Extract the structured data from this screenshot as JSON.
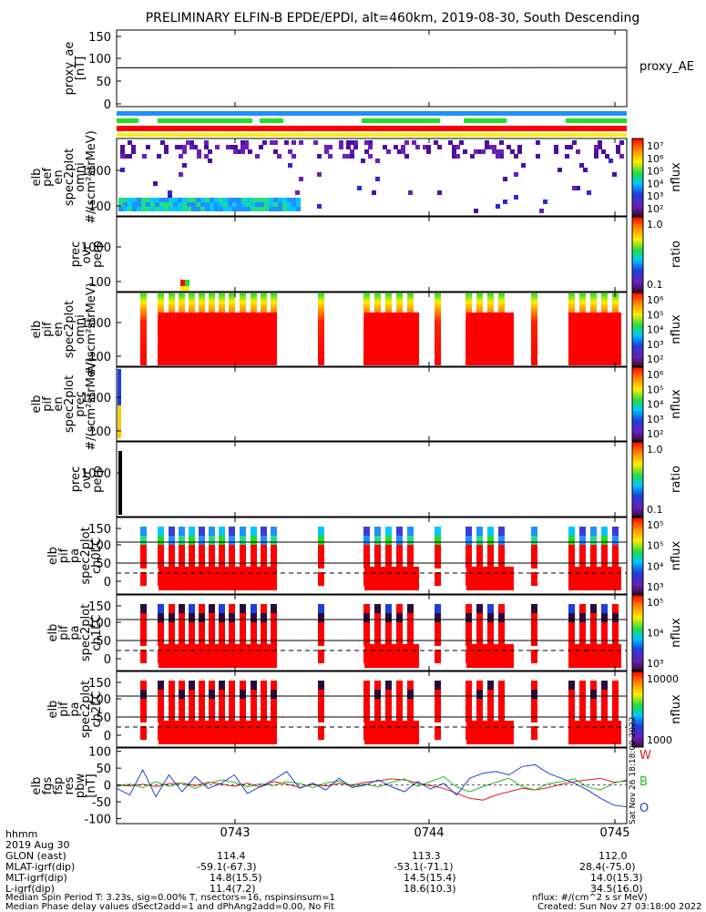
{
  "title": "PRELIMINARY ELFIN-B EPDE/EPDI, alt=460km, 2019-08-30, South Descending",
  "chart_data": {
    "type": "multi-panel spectrogram / line plot",
    "x_tick_labels": [
      "0743",
      "0744",
      "0745"
    ],
    "panels": [
      {
        "id": "proxy_ae",
        "type": "line",
        "ylabel": [
          "proxy_ae",
          "[nT]"
        ],
        "yticks": [
          "150",
          "100",
          "50",
          "0"
        ],
        "legend": "proxy_AE",
        "values_nT": [
          76,
          76,
          77
        ],
        "ylim": [
          -10,
          160
        ]
      },
      {
        "id": "status_bars",
        "type": "bars",
        "colors": [
          "#1e90ff",
          "#22dd22",
          "#ff0000",
          "#ffee00"
        ]
      },
      {
        "id": "elb_pef_en_spec2plot_omni",
        "type": "heatmap",
        "ylabel": [
          "elb",
          "pef",
          "en",
          "spec2plot",
          "omni",
          "#/(scm²strMeV)"
        ],
        "yticks": [
          "1000",
          "100"
        ],
        "colorbar": {
          "labels": [
            "10⁷",
            "10⁶",
            "10⁵",
            "10⁴",
            "10³",
            "10²"
          ],
          "title": "nflux"
        }
      },
      {
        "id": "elb_pef_prec_ovr_perp",
        "type": "heatmap",
        "ylabel": [
          "prec",
          "ovr",
          "perp"
        ],
        "yticks": [
          "1000",
          "100"
        ],
        "colorbar": {
          "labels": [
            "1.0",
            "0.1"
          ],
          "title": "ratio"
        }
      },
      {
        "id": "elb_pif_en_spec2plot_omni",
        "type": "heatmap",
        "ylabel": [
          "elb",
          "pif",
          "en",
          "spec2plot",
          "omni",
          "#/(scm²strMeV)"
        ],
        "yticks": [
          "1000",
          "100"
        ],
        "colorbar": {
          "labels": [
            "10⁶",
            "10⁵",
            "10⁴",
            "10³",
            "10²"
          ],
          "title": "nflux"
        }
      },
      {
        "id": "elb_pif_en_spec2plot_prec",
        "type": "heatmap",
        "ylabel": [
          "elb",
          "pif",
          "en",
          "spec2plot",
          "prec",
          "#/(scm²strMeV)"
        ],
        "yticks": [
          "1000",
          "100"
        ],
        "colorbar": {
          "labels": [
            "10⁶",
            "10⁵",
            "10⁴",
            "10³",
            "10²"
          ],
          "title": "nflux"
        }
      },
      {
        "id": "elb_pif_prec_ovr_perp",
        "type": "heatmap",
        "ylabel": [
          "prec",
          "ovr",
          "perp"
        ],
        "yticks": [
          "1000"
        ],
        "colorbar": {
          "labels": [
            "1.0",
            "0.1"
          ],
          "title": "ratio"
        }
      },
      {
        "id": "elb_pif_pa_spec2plot_ch0LC",
        "type": "heatmap",
        "ylabel": [
          "elb",
          "pif",
          "pa",
          "spec2plot",
          "ch0LC"
        ],
        "yticks": [
          "150",
          "100",
          "50",
          "0"
        ],
        "colorbar": {
          "labels": [
            "10⁵",
            "10⁵",
            "10⁴",
            "10³"
          ],
          "title": "nflux"
        }
      },
      {
        "id": "elb_pif_pa_spec2plot_ch1LC",
        "type": "heatmap",
        "ylabel": [
          "elb",
          "pif",
          "pa",
          "spec2plot",
          "ch1LC"
        ],
        "yticks": [
          "150",
          "100",
          "50",
          "0"
        ],
        "colorbar": {
          "labels": [
            "10⁵",
            "10⁴",
            "10³"
          ],
          "title": "nflux"
        }
      },
      {
        "id": "elb_pif_pa_spec2plot_ch2LC",
        "type": "heatmap",
        "ylabel": [
          "elb",
          "pif",
          "pa",
          "spec2plot",
          "ch2LC"
        ],
        "yticks": [
          "150",
          "100",
          "50",
          "0"
        ],
        "colorbar": {
          "labels": [
            "10000",
            "1000"
          ],
          "title": "nflux"
        }
      },
      {
        "id": "elb_fgs_fsp_res_pbw",
        "type": "line",
        "ylabel": [
          "elb",
          "fgs",
          "fsp",
          "res",
          "pbw",
          "[nT]"
        ],
        "yticks": [
          "100",
          "50",
          "0",
          "-50",
          "-100"
        ],
        "ylim": [
          -115,
          110
        ],
        "legend": [
          {
            "name": "W",
            "color": "#e41a1c"
          },
          {
            "name": "B",
            "color": "#22bb22"
          },
          {
            "name": "O",
            "color": "#1f3fd8"
          }
        ],
        "series": [
          {
            "color": "#e41a1c",
            "values": [
              0,
              -3,
              2,
              -5,
              4,
              6,
              -2,
              8,
              3,
              -4,
              5,
              -6,
              10,
              3,
              -8,
              2,
              -3,
              5,
              0,
              8,
              12,
              18,
              15,
              6,
              -2,
              -10,
              -25,
              -40,
              -45,
              -30,
              -20,
              -10,
              -15,
              -8,
              2,
              10,
              15,
              20,
              8,
              12
            ]
          },
          {
            "color": "#22bb22",
            "values": [
              -5,
              3,
              -8,
              10,
              -4,
              6,
              -10,
              5,
              15,
              8,
              -6,
              4,
              -2,
              10,
              5,
              -8,
              6,
              12,
              -4,
              3,
              -6,
              8,
              18,
              -4,
              10,
              25,
              -6,
              -20,
              -5,
              8,
              20,
              -5,
              -15,
              4,
              10,
              18,
              -6,
              -15,
              5,
              15
            ]
          },
          {
            "color": "#1f3fd8",
            "values": [
              -10,
              -30,
              45,
              -35,
              30,
              -20,
              25,
              -10,
              5,
              30,
              -25,
              -5,
              15,
              40,
              -10,
              5,
              -15,
              20,
              -8,
              0,
              15,
              -5,
              -20,
              10,
              -12,
              5,
              -30,
              20,
              35,
              40,
              30,
              55,
              60,
              35,
              20,
              5,
              -15,
              -40,
              -60,
              -65
            ]
          }
        ]
      }
    ]
  },
  "footer": {
    "hhmm_label": "hhmm",
    "date_label": "2019 Aug 30",
    "rows": [
      {
        "label": "GLON (east)",
        "values": [
          "114.4",
          "113.3",
          "112.0"
        ]
      },
      {
        "label": "MLAT-igrf(dip)",
        "values": [
          "-59.1(-67.3)",
          "-53.1(-71.1)",
          "28.4(-75.0)"
        ]
      },
      {
        "label": "MLT-igrf(dip)",
        "values": [
          "14.8(15.5)",
          "14.5(15.4)",
          "14.0(15.3)"
        ]
      },
      {
        "label": "L-igrf(dip)",
        "values": [
          "11.4(7.2)",
          "18.6(10.3)",
          "34.5(16.0)"
        ]
      }
    ],
    "note1": "Median Spin Period T: 3.23s, sig=0.00% T, nsectors=16, nspinsinsum=1",
    "note2": "Median Phase delay values dSect2add=1 and dPhAng2add=0.00, No Fit",
    "units": "nflux: #/(cm^2 s sr MeV)",
    "created": "Created: Sun Nov 27 03:18:00 2022",
    "stamp": "Sat Nov 26 18:18:00 2022"
  },
  "colors": {
    "red": "#ff0000",
    "green": "#22dd22",
    "blue": "#1e90ff",
    "yellow": "#ffee00",
    "dark_red": "#8b0000",
    "black": "#000000"
  }
}
